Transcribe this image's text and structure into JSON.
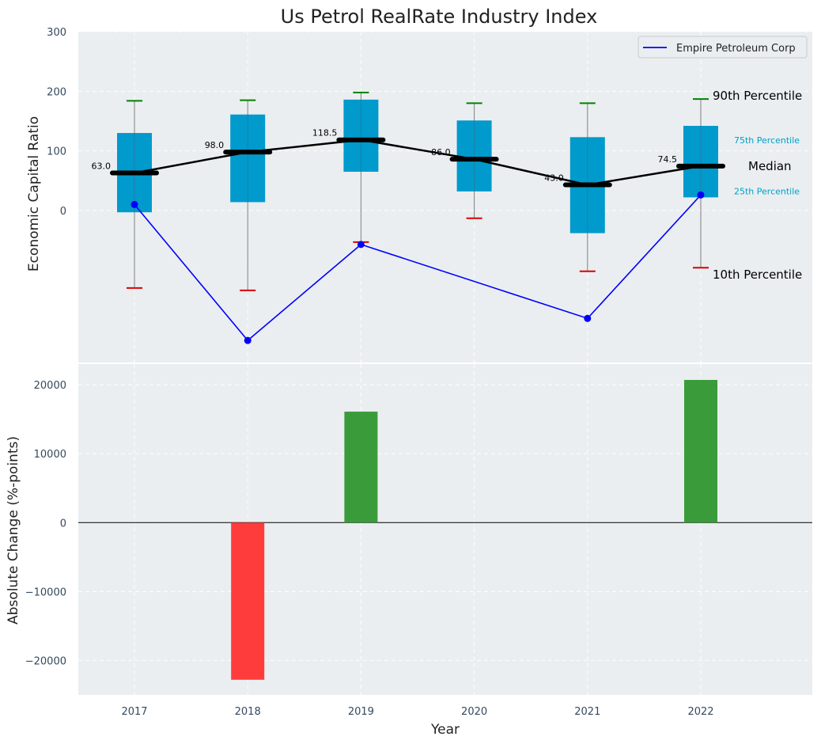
{
  "chart_data": [
    {
      "type": "box",
      "title": "Us Petrol RealRate Industry Index",
      "ylabel": "Economic Capital Ratio",
      "ylim": [
        -255,
        300
      ],
      "yticks": [
        0,
        100,
        200,
        300
      ],
      "categories": [
        "2017",
        "2018",
        "2019",
        "2020",
        "2021",
        "2022"
      ],
      "boxes": [
        {
          "year": "2017",
          "p10": -130,
          "q1": -3,
          "median": 63.0,
          "q3": 130,
          "p90": 184
        },
        {
          "year": "2018",
          "p10": -134,
          "q1": 14,
          "median": 98.0,
          "q3": 161,
          "p90": 185
        },
        {
          "year": "2019",
          "p10": -53,
          "q1": 65,
          "median": 118.5,
          "q3": 186,
          "p90": 198
        },
        {
          "year": "2020",
          "p10": -13,
          "q1": 32,
          "median": 86.0,
          "q3": 151,
          "p90": 180
        },
        {
          "year": "2021",
          "p10": -102,
          "q1": -38,
          "median": 43.0,
          "q3": 123,
          "p90": 180
        },
        {
          "year": "2022",
          "p10": -96,
          "q1": 22,
          "median": 74.5,
          "q3": 142,
          "p90": 187
        }
      ],
      "median_labels": [
        "63.0",
        "98.0",
        "118.5",
        "86.0",
        "43.0",
        "74.5"
      ],
      "series": [
        {
          "name": "Empire Petroleum Corp",
          "color": "#0000ff",
          "x": [
            "2017",
            "2018",
            "2019",
            "2021",
            "2022"
          ],
          "values": [
            10,
            -218,
            -57,
            -181,
            26
          ]
        }
      ],
      "percentile_labels": {
        "p90": "90th Percentile",
        "q3": "75th Percentile",
        "median": "Median",
        "q1": "25th Percentile",
        "p10": "10th Percentile"
      },
      "legend": "top-right",
      "grid": true
    },
    {
      "type": "bar",
      "ylabel": "Absolute Change (%-points)",
      "xlabel": "Year",
      "ylim": [
        -25000,
        23000
      ],
      "yticks": [
        -20000,
        -10000,
        0,
        10000,
        20000
      ],
      "ytick_labels": [
        "−20000",
        "−10000",
        "0",
        "10000",
        "20000"
      ],
      "categories": [
        "2017",
        "2018",
        "2019",
        "2020",
        "2021",
        "2022"
      ],
      "values": [
        0,
        -22800,
        16100,
        0,
        0,
        20700
      ],
      "colors": {
        "positive": "#3a9b3a",
        "negative": "#ff3c3c"
      },
      "grid": true
    }
  ],
  "colors": {
    "panel_bg": "#eaeef0",
    "box_fill": "#009acd",
    "p90_cap": "#008000",
    "p10_cap": "#dd0000",
    "median": "#000000",
    "label_blue": "#00a0c8"
  }
}
